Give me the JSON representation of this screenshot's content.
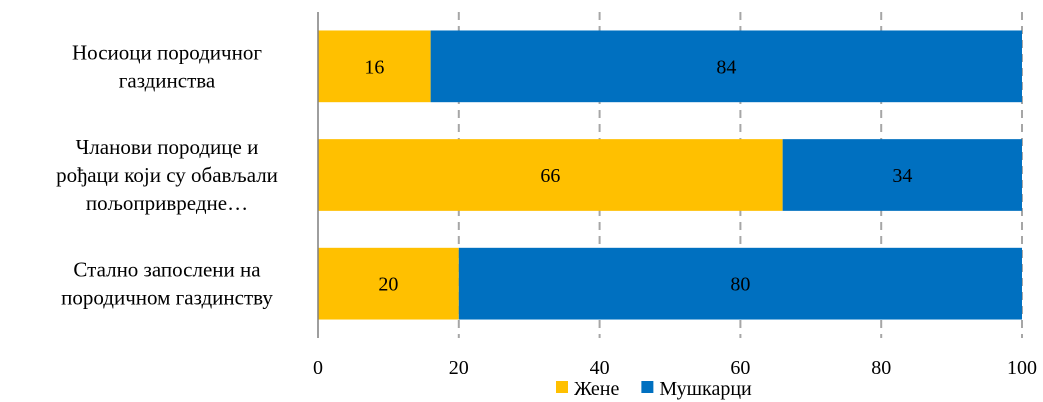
{
  "chart_data": {
    "type": "bar",
    "orientation": "horizontal",
    "stacked": true,
    "categories": [
      [
        "Носиоци породичног",
        "газдинства"
      ],
      [
        "Чланови породице и",
        "рођаци који су обављали",
        "пољопривредне…"
      ],
      [
        "Стално запослени на",
        "породичном газдинству"
      ]
    ],
    "series": [
      {
        "name": "Жене",
        "color": "#FFC000",
        "values": [
          16,
          66,
          20
        ]
      },
      {
        "name": "Мушкарци",
        "color": "#0070C0",
        "values": [
          84,
          34,
          80
        ]
      }
    ],
    "xlim": [
      0,
      100
    ],
    "xticks": [
      0,
      20,
      40,
      60,
      80,
      100
    ],
    "grid": "vertical-dashed",
    "legend": "bottom",
    "data_labels": true
  }
}
